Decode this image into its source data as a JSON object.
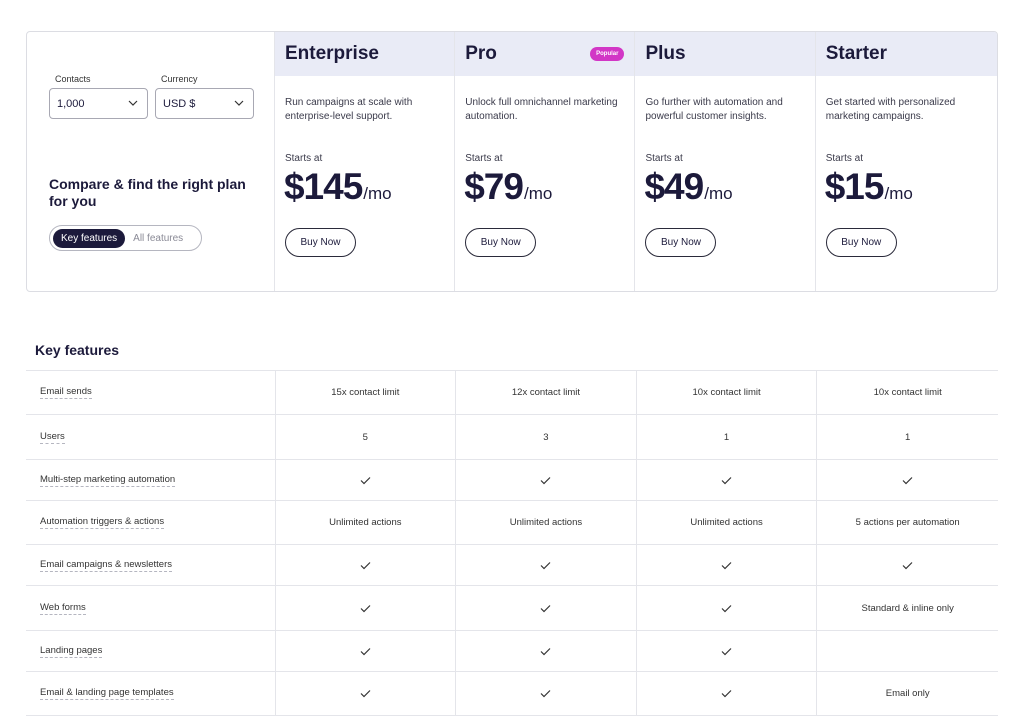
{
  "controls": {
    "contacts_label": "Contacts",
    "contacts_value": "1,000",
    "currency_label": "Currency",
    "currency_value": "USD $",
    "compare_title": "Compare & find the right plan for you",
    "toggle_key": "Key features",
    "toggle_all": "All features"
  },
  "plans": [
    {
      "name": "Enterprise",
      "badge": "",
      "desc": "Run campaigns at scale with enterprise-level support.",
      "starts": "Starts at",
      "price": "$145",
      "per": "/mo",
      "button": "Buy Now"
    },
    {
      "name": "Pro",
      "badge": "Popular",
      "desc": "Unlock full omnichannel marketing automation.",
      "starts": "Starts at",
      "price": "$79",
      "per": "/mo",
      "button": "Buy Now"
    },
    {
      "name": "Plus",
      "badge": "",
      "desc": "Go further with automation and powerful customer insights.",
      "starts": "Starts at",
      "price": "$49",
      "per": "/mo",
      "button": "Buy Now"
    },
    {
      "name": "Starter",
      "badge": "",
      "desc": "Get started with personalized marketing campaigns.",
      "starts": "Starts at",
      "price": "$15",
      "per": "/mo",
      "button": "Buy Now"
    }
  ],
  "features": {
    "title": "Key features",
    "rows": [
      {
        "name": "Email sends",
        "values": [
          "15x contact limit",
          "12x contact limit",
          "10x contact limit",
          "10x contact limit"
        ]
      },
      {
        "name": "Users",
        "values": [
          "5",
          "3",
          "1",
          "1"
        ]
      },
      {
        "name": "Multi-step marketing automation",
        "values": [
          "check",
          "check",
          "check",
          "check"
        ]
      },
      {
        "name": "Automation triggers & actions",
        "values": [
          "Unlimited actions",
          "Unlimited actions",
          "Unlimited actions",
          "5 actions per automation"
        ]
      },
      {
        "name": "Email campaigns & newsletters",
        "values": [
          "check",
          "check",
          "check",
          "check"
        ]
      },
      {
        "name": "Web forms",
        "values": [
          "check",
          "check",
          "check",
          "Standard & inline only"
        ]
      },
      {
        "name": "Landing pages",
        "values": [
          "check",
          "check",
          "check",
          ""
        ]
      },
      {
        "name": "Email & landing page templates",
        "values": [
          "check",
          "check",
          "check",
          "Email only"
        ]
      }
    ]
  },
  "icons": {
    "check": "check-icon",
    "chevron": "chevron-down-icon"
  },
  "colors": {
    "brand_dark": "#1c1a3b",
    "header_bg": "#e9ebf6",
    "popular_badge": "#d236c6"
  }
}
